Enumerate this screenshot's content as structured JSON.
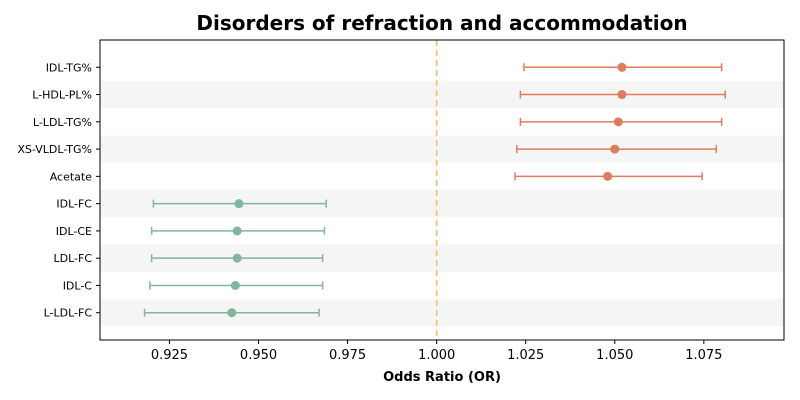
{
  "chart_data": {
    "type": "forest",
    "title": "Disorders of refraction and accommodation",
    "xlabel": "Odds Ratio (OR)",
    "ylabel": "",
    "xlim": [
      0.9055,
      1.0975
    ],
    "xticks": [
      0.925,
      0.95,
      0.975,
      1.0,
      1.025,
      1.05,
      1.075
    ],
    "xtick_labels": [
      "0.925",
      "0.950",
      "0.975",
      "1.000",
      "1.025",
      "1.050",
      "1.075"
    ],
    "reference_line": 1.0,
    "grid": false,
    "legend": "none",
    "colors": {
      "positive": "#e07b5f",
      "negative": "#81b59d",
      "reference": "#f5c47a",
      "band": "#f5f5f5"
    },
    "rows": [
      {
        "label": "IDL-TG%",
        "or": 1.052,
        "lower": 1.0245,
        "upper": 1.08
      },
      {
        "label": "L-HDL-PL%",
        "or": 1.052,
        "lower": 1.0235,
        "upper": 1.081
      },
      {
        "label": "L-LDL-TG%",
        "or": 1.051,
        "lower": 1.0235,
        "upper": 1.08
      },
      {
        "label": "XS-VLDL-TG%",
        "or": 1.05,
        "lower": 1.0225,
        "upper": 1.0785
      },
      {
        "label": "Acetate",
        "or": 1.048,
        "lower": 1.022,
        "upper": 1.0745
      },
      {
        "label": "IDL-FC",
        "or": 0.9445,
        "lower": 0.9205,
        "upper": 0.969
      },
      {
        "label": "IDL-CE",
        "or": 0.944,
        "lower": 0.92,
        "upper": 0.9685
      },
      {
        "label": "LDL-FC",
        "or": 0.944,
        "lower": 0.92,
        "upper": 0.968
      },
      {
        "label": "IDL-C",
        "or": 0.9435,
        "lower": 0.9195,
        "upper": 0.968
      },
      {
        "label": "L-LDL-FC",
        "or": 0.9425,
        "lower": 0.918,
        "upper": 0.967
      }
    ]
  }
}
